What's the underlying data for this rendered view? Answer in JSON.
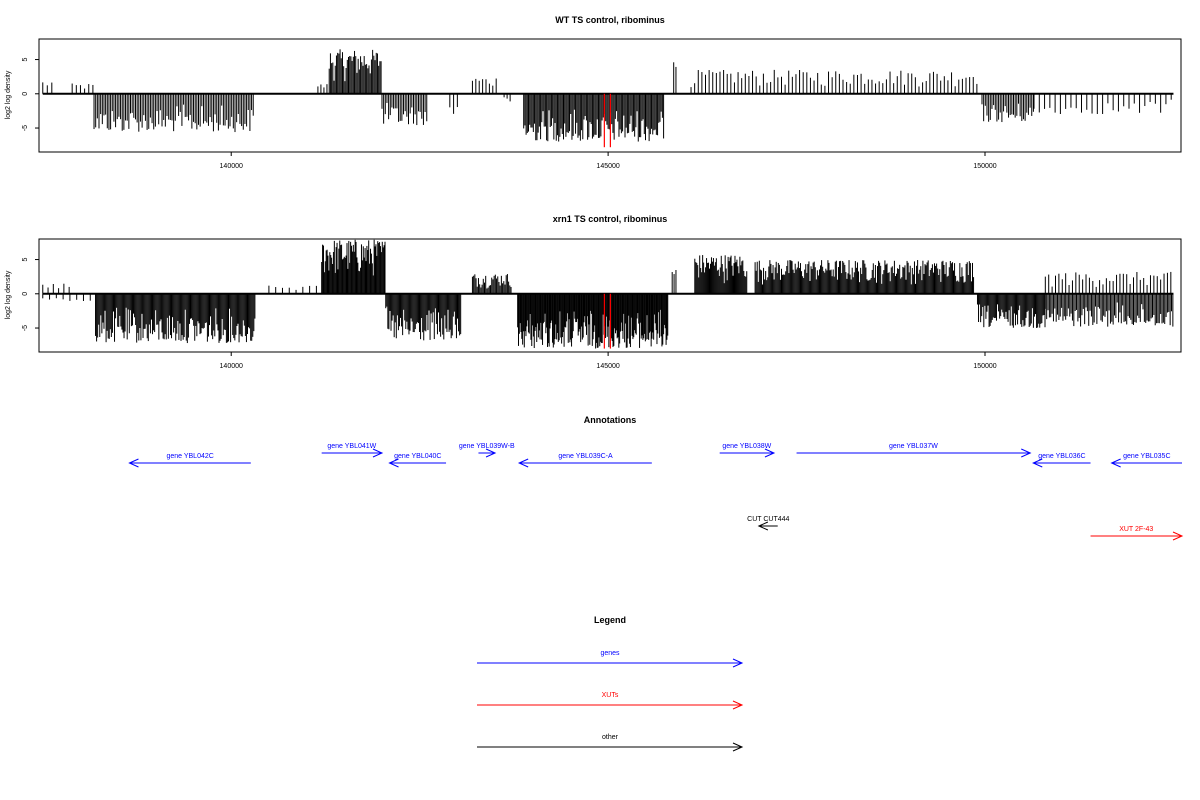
{
  "chart_data": [
    {
      "type": "bar",
      "title": "WT TS control, ribominus",
      "ylabel": "log2 log density",
      "xlim": [
        137450,
        152600
      ],
      "ylim": [
        -8.5,
        8
      ],
      "x_ticks": [
        140000,
        145000,
        150000
      ],
      "y_ticks": [
        5,
        0,
        -5
      ],
      "grid": false,
      "highlight_lines": [
        {
          "x": 144950,
          "y": -7.8
        },
        {
          "x": 145030,
          "y": -7.8
        }
      ],
      "regions": [
        {
          "strand": "plus",
          "from": 137500,
          "to": 137620,
          "step": 60,
          "max": 2
        },
        {
          "strand": "plus",
          "from": 137890,
          "to": 138200,
          "step": 55,
          "max": 1.5
        },
        {
          "strand": "minus",
          "from": 138180,
          "to": 140300,
          "step": 22,
          "max": 5.6
        },
        {
          "strand": "plus",
          "from": 141150,
          "to": 141300,
          "step": 40,
          "max": 1.5
        },
        {
          "strand": "plus",
          "from": 141300,
          "to": 142000,
          "step": 16,
          "max": 6.5
        },
        {
          "strand": "minus",
          "from": 142000,
          "to": 142600,
          "step": 22,
          "max": 4.6
        },
        {
          "strand": "minus",
          "from": 142900,
          "to": 143000,
          "step": 50,
          "max": 3.2
        },
        {
          "strand": "plus",
          "from": 143200,
          "to": 143550,
          "step": 45,
          "max": 2.5
        },
        {
          "strand": "minus",
          "from": 143620,
          "to": 143720,
          "step": 40,
          "max": 1.5
        },
        {
          "strand": "minus",
          "from": 143880,
          "to": 145750,
          "step": 16,
          "max": 7
        },
        {
          "strand": "plus",
          "from": 145870,
          "to": 145900,
          "step": 30,
          "max": 6.2
        },
        {
          "strand": "plus",
          "from": 146100,
          "to": 149900,
          "step": 48,
          "max": 3.5
        },
        {
          "strand": "minus",
          "from": 149960,
          "to": 150650,
          "step": 22,
          "max": 4.2
        },
        {
          "strand": "minus",
          "from": 150650,
          "to": 152500,
          "step": 70,
          "max": 3
        }
      ]
    },
    {
      "type": "bar",
      "title": "xrn1 TS control, ribominus",
      "ylabel": "log2 log density",
      "xlim": [
        137450,
        152600
      ],
      "ylim": [
        -8.5,
        8
      ],
      "x_ticks": [
        140000,
        145000,
        150000
      ],
      "y_ticks": [
        5,
        0,
        -5
      ],
      "grid": false,
      "highlight_lines": [
        {
          "x": 144950,
          "y": -8
        },
        {
          "x": 145030,
          "y": -8
        }
      ],
      "regions": [
        {
          "strand": "plus",
          "from": 137500,
          "to": 137900,
          "step": 70,
          "max": 1.5
        },
        {
          "strand": "minus",
          "from": 137500,
          "to": 138200,
          "step": 90,
          "max": 1.2
        },
        {
          "strand": "minus",
          "from": 138200,
          "to": 140320,
          "step": 14,
          "max": 7.2
        },
        {
          "strand": "plus",
          "from": 140500,
          "to": 141200,
          "step": 90,
          "max": 1.2
        },
        {
          "strand": "plus",
          "from": 141200,
          "to": 142050,
          "step": 12,
          "max": 8
        },
        {
          "strand": "minus",
          "from": 142050,
          "to": 143050,
          "step": 14,
          "max": 7
        },
        {
          "strand": "plus",
          "from": 143200,
          "to": 143720,
          "step": 16,
          "max": 3
        },
        {
          "strand": "minus",
          "from": 143800,
          "to": 145800,
          "step": 11,
          "max": 8
        },
        {
          "strand": "plus",
          "from": 145850,
          "to": 145900,
          "step": 25,
          "max": 4.2
        },
        {
          "strand": "plus",
          "from": 146150,
          "to": 146850,
          "step": 13,
          "max": 5.8
        },
        {
          "strand": "plus",
          "from": 146950,
          "to": 149850,
          "step": 14,
          "max": 5
        },
        {
          "strand": "minus",
          "from": 149900,
          "to": 150800,
          "step": 14,
          "max": 5
        },
        {
          "strand": "minus",
          "from": 150800,
          "to": 152500,
          "step": 18,
          "max": 4.8
        },
        {
          "strand": "plus",
          "from": 150800,
          "to": 152500,
          "step": 45,
          "max": 3.2
        }
      ]
    }
  ],
  "annotations": {
    "title": "Annotations",
    "colors": {
      "gene": "#0000ff",
      "xut": "#ff0000",
      "other": "#000000"
    },
    "features": [
      {
        "label": "gene YBL042C",
        "kind": "gene",
        "strand": "minus",
        "start": 138650,
        "end": 140260,
        "row": 2
      },
      {
        "label": "gene YBL041W",
        "kind": "gene",
        "strand": "plus",
        "start": 141200,
        "end": 142000,
        "row": 1
      },
      {
        "label": "gene YBL040C",
        "kind": "gene",
        "strand": "minus",
        "start": 142100,
        "end": 142850,
        "row": 2
      },
      {
        "label": "gene YBL039W-B",
        "kind": "gene",
        "strand": "plus",
        "start": 143280,
        "end": 143500,
        "row": 1
      },
      {
        "label": "gene YBL039C-A",
        "kind": "gene",
        "strand": "minus",
        "start": 143820,
        "end": 145580,
        "row": 2
      },
      {
        "label": "gene YBL038W",
        "kind": "gene",
        "strand": "plus",
        "start": 146480,
        "end": 147200,
        "row": 1
      },
      {
        "label": "gene YBL037W",
        "kind": "gene",
        "strand": "plus",
        "start": 147500,
        "end": 150600,
        "row": 1
      },
      {
        "label": "gene YBL036C",
        "kind": "gene",
        "strand": "minus",
        "start": 150640,
        "end": 151400,
        "row": 2
      },
      {
        "label": "gene YBL035C",
        "kind": "gene",
        "strand": "minus",
        "start": 151680,
        "end": 153500,
        "row": 2
      },
      {
        "label": "CUT CUT444",
        "kind": "other",
        "strand": "minus",
        "start": 147000,
        "end": 147250,
        "row": 3
      },
      {
        "label": "XUT 2F-43",
        "kind": "xut",
        "strand": "plus",
        "start": 151400,
        "end": 153500,
        "row": 4
      }
    ]
  },
  "legend": {
    "title": "Legend",
    "items": [
      {
        "label": "genes",
        "color": "#0000ff"
      },
      {
        "label": "XUTs",
        "color": "#ff0000"
      },
      {
        "label": "other",
        "color": "#000000"
      }
    ]
  }
}
